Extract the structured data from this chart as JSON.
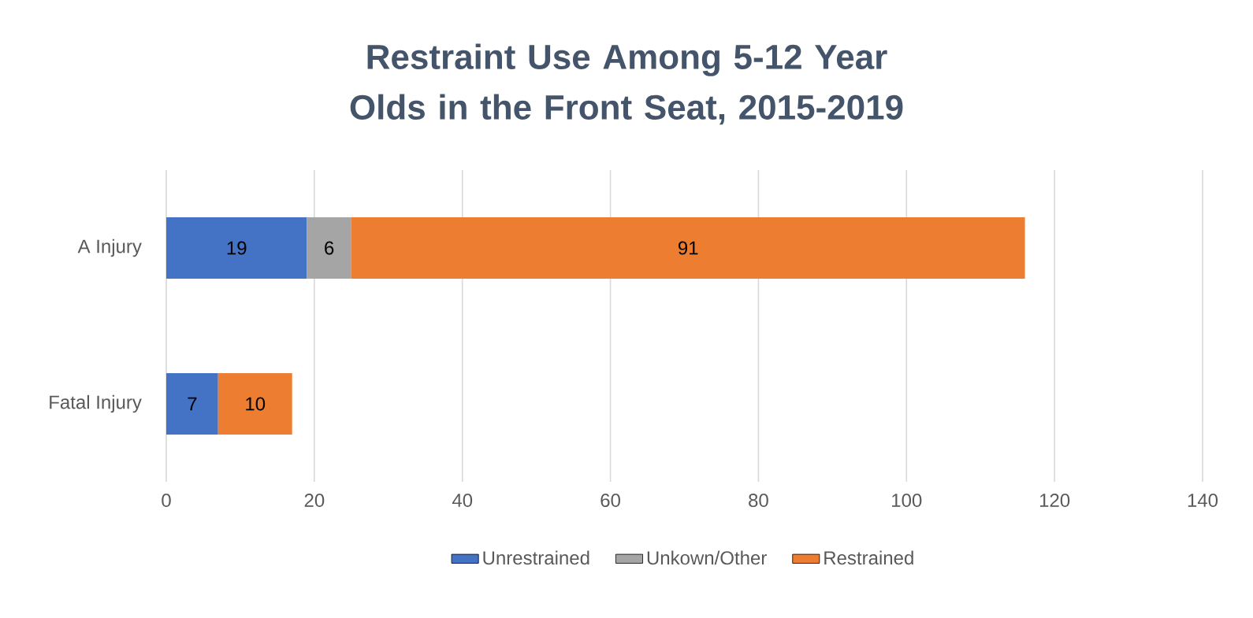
{
  "chart_data": {
    "type": "bar",
    "orientation": "horizontal",
    "stacked": true,
    "title": "Restraint Use Among 5-12 Year Olds in the Front Seat, 2015-2019",
    "categories": [
      "A Injury",
      "Fatal Injury"
    ],
    "series": [
      {
        "name": "Unrestrained",
        "color": "#4472c4",
        "values": [
          19,
          7
        ]
      },
      {
        "name": "Unkown/Other",
        "color": "#a5a5a5",
        "values": [
          6,
          null
        ]
      },
      {
        "name": "Restrained",
        "color": "#ed7d31",
        "values": [
          91,
          10
        ]
      }
    ],
    "xlim": [
      0,
      140
    ],
    "xticks": [
      0,
      20,
      40,
      60,
      80,
      100,
      120,
      140
    ],
    "grid": "x",
    "legend": "bottom",
    "data_labels": true
  }
}
